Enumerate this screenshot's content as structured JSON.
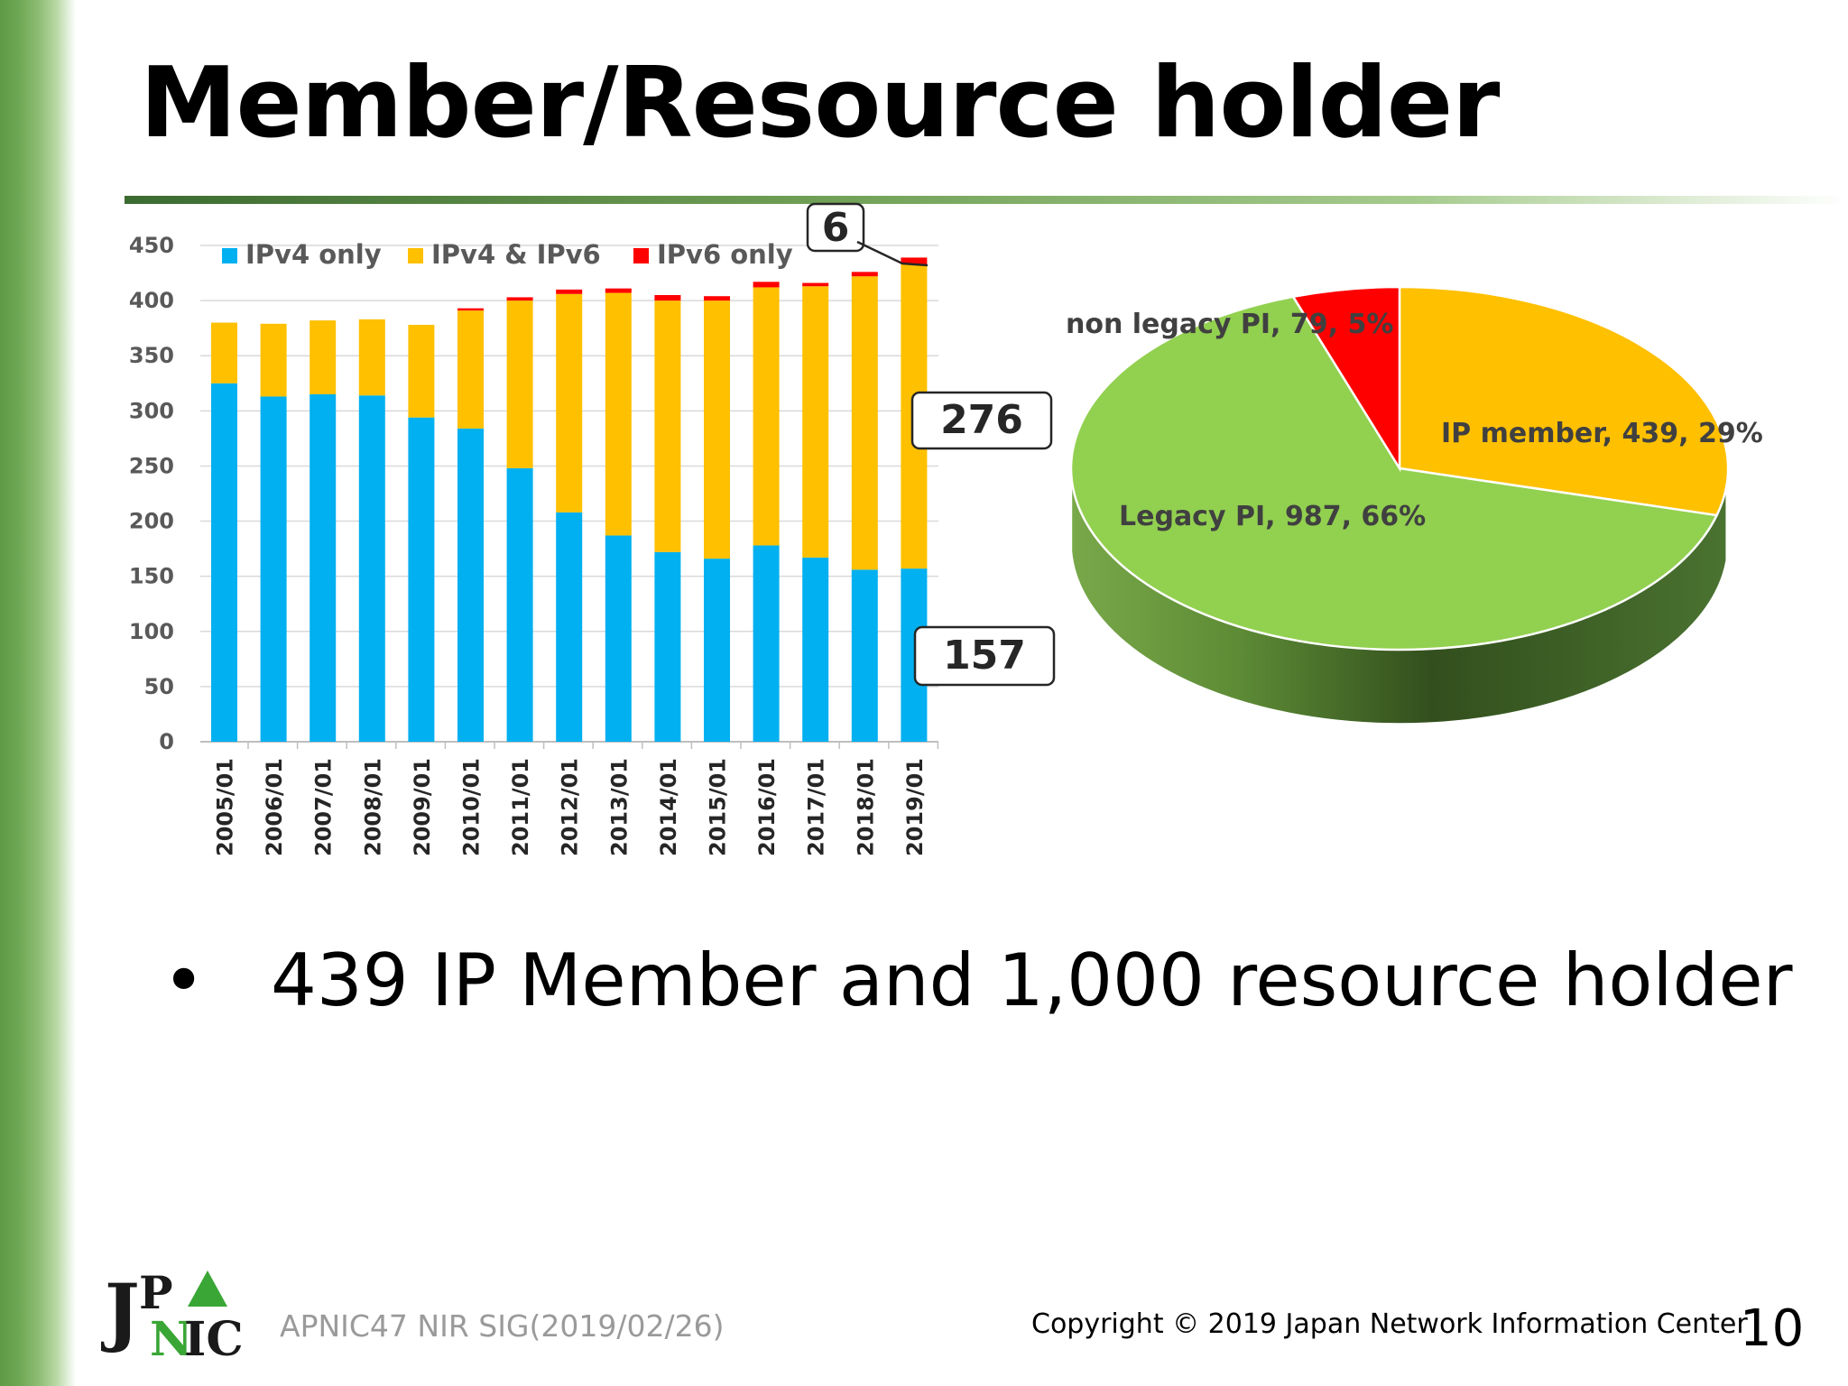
{
  "slide": {
    "title": "Member/Resource holder",
    "bullet": "439 IP Member and 1,000 resource holder",
    "footer_event": "APNIC47 NIR SIG(2019/02/26)",
    "footer_copyright": "Copyright © 2019 Japan Network Information Center",
    "page_number": "10",
    "logo_text": "JPNIC"
  },
  "colors": {
    "ipv4_only": "#00b0f0",
    "ipv4_ipv6": "#ffc000",
    "ipv6_only": "#ff0000",
    "legacy_pi": "#92d050",
    "ip_member": "#ffc000",
    "non_legacy_pi": "#ff0000",
    "side_band": "#6ea753"
  },
  "chart_data": [
    {
      "type": "bar",
      "stacked": true,
      "categories": [
        "2005/01",
        "2006/01",
        "2007/01",
        "2008/01",
        "2009/01",
        "2010/01",
        "2011/01",
        "2012/01",
        "2013/01",
        "2014/01",
        "2015/01",
        "2016/01",
        "2017/01",
        "2018/01",
        "2019/01"
      ],
      "series": [
        {
          "name": "IPv4 only",
          "values": [
            325,
            313,
            315,
            314,
            294,
            284,
            248,
            208,
            187,
            172,
            166,
            178,
            167,
            156,
            157
          ]
        },
        {
          "name": "IPv4 & IPv6",
          "values": [
            55,
            66,
            67,
            69,
            84,
            107,
            152,
            198,
            220,
            228,
            234,
            234,
            246,
            266,
            276
          ]
        },
        {
          "name": "IPv6 only",
          "values": [
            0,
            0,
            0,
            0,
            0,
            2,
            3,
            4,
            4,
            5,
            4,
            5,
            3,
            4,
            6
          ]
        }
      ],
      "ylim": [
        0,
        450
      ],
      "yticks": [
        0,
        50,
        100,
        150,
        200,
        250,
        300,
        350,
        400,
        450
      ],
      "grid": true,
      "legend": "top",
      "callouts": [
        "6",
        "276",
        "157"
      ]
    },
    {
      "type": "pie",
      "style": "3d",
      "slices": [
        {
          "label": "IP member",
          "value": 439,
          "percent": "29%",
          "text": "IP member, 439, 29%"
        },
        {
          "label": "Legacy PI",
          "value": 987,
          "percent": "66%",
          "text": "Legacy PI, 987, 66%"
        },
        {
          "label": "non legacy PI",
          "value": 79,
          "percent": "5%",
          "text": "non legacy PI, 79, 5%"
        }
      ]
    }
  ]
}
